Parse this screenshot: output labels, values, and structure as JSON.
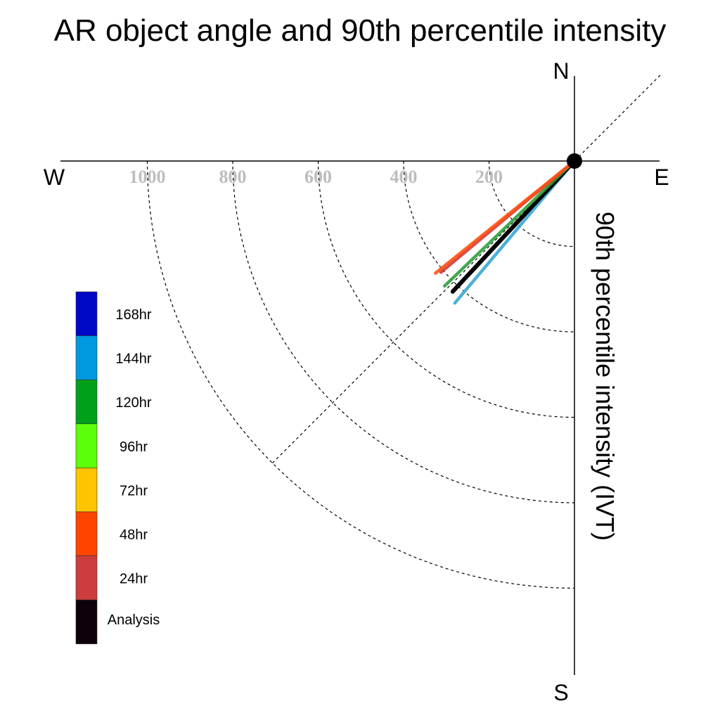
{
  "chart_data": {
    "type": "polar-vector",
    "title": "AR object angle and 90th percentile intensity",
    "ylabel": "90th percentile intensity (IVT)",
    "compass": {
      "north": "N",
      "south": "S",
      "east": "E",
      "west": "W"
    },
    "radial_ticks": [
      200,
      400,
      600,
      800,
      1000
    ],
    "radial_tick_labels": [
      "200",
      "400",
      "600",
      "800",
      "1000"
    ],
    "rmax": 1200,
    "legend": [
      {
        "label": "168hr",
        "color": "#0008c8"
      },
      {
        "label": "144hr",
        "color": "#0099e0"
      },
      {
        "label": "120hr",
        "color": "#00a01a"
      },
      {
        "label": "96hr",
        "color": "#5cff0a"
      },
      {
        "label": "72hr",
        "color": "#ffc400"
      },
      {
        "label": "48hr",
        "color": "#ff4400"
      },
      {
        "label": "24hr",
        "color": "#cc3d3d"
      },
      {
        "label": "Analysis",
        "color": "#0d000a"
      }
    ],
    "series": [
      {
        "name": "144hr",
        "angle_deg_from_west": 49.9,
        "intensity": 435,
        "color": "#3aa6d6"
      },
      {
        "name": "Analysis",
        "angle_deg_from_west": 47.0,
        "intensity": 418,
        "color": "#000000"
      },
      {
        "name": "120hr",
        "angle_deg_from_west": 43.9,
        "intensity": 422,
        "color": "#2ea03a"
      },
      {
        "name": "24hr",
        "angle_deg_from_west": 39.8,
        "intensity": 407,
        "color": "#cc3d3d"
      },
      {
        "name": "48hr",
        "angle_deg_from_west": 38.9,
        "intensity": 418,
        "color": "#ff5010"
      }
    ]
  }
}
